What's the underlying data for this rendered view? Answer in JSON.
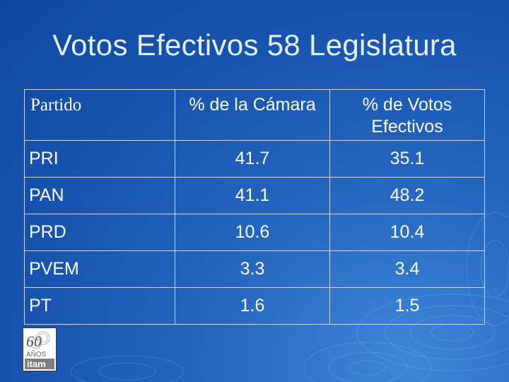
{
  "slide": {
    "title": "Votos Efectivos 58 Legislatura"
  },
  "table": {
    "headers": [
      "Partido",
      "% de la Cámara",
      "% de Votos Efectivos"
    ],
    "rows": [
      {
        "party": "PRI",
        "camara": "41.7",
        "votos": "35.1"
      },
      {
        "party": "PAN",
        "camara": "41.1",
        "votos": "48.2"
      },
      {
        "party": "PRD",
        "camara": "10.6",
        "votos": "10.4"
      },
      {
        "party": "PVEM",
        "camara": "3.3",
        "votos": "3.4"
      },
      {
        "party": "PT",
        "camara": "1.6",
        "votos": "1.5"
      }
    ]
  },
  "logo": {
    "line1": "60",
    "line2": "AÑOS",
    "line3": "itam"
  },
  "colors": {
    "background": "#1552ae",
    "title": "#e6f0ff",
    "text": "#ffffff",
    "grid": "#c9d8f0"
  }
}
